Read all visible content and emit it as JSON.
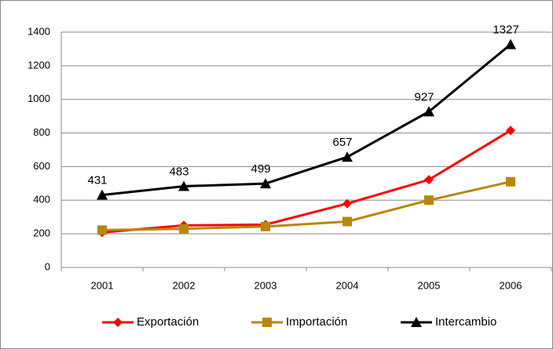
{
  "chart_data": {
    "type": "line",
    "categories": [
      "2001",
      "2002",
      "2003",
      "2004",
      "2005",
      "2006"
    ],
    "series": [
      {
        "name": "Exportación",
        "color": "#ff0000",
        "marker": "diamond",
        "values": [
          208,
          250,
          255,
          380,
          522,
          815
        ]
      },
      {
        "name": "Importación",
        "color": "#b8860b",
        "marker": "square",
        "values": [
          222,
          230,
          243,
          273,
          400,
          510
        ]
      },
      {
        "name": "Intercambio",
        "color": "#000000",
        "marker": "triangle",
        "values": [
          431,
          483,
          499,
          657,
          927,
          1327
        ],
        "data_labels": true
      }
    ],
    "ylim": [
      0,
      1400
    ],
    "yticks": [
      0,
      200,
      400,
      600,
      800,
      1000,
      1200,
      1400
    ],
    "grid": true,
    "legend": "bottom"
  }
}
